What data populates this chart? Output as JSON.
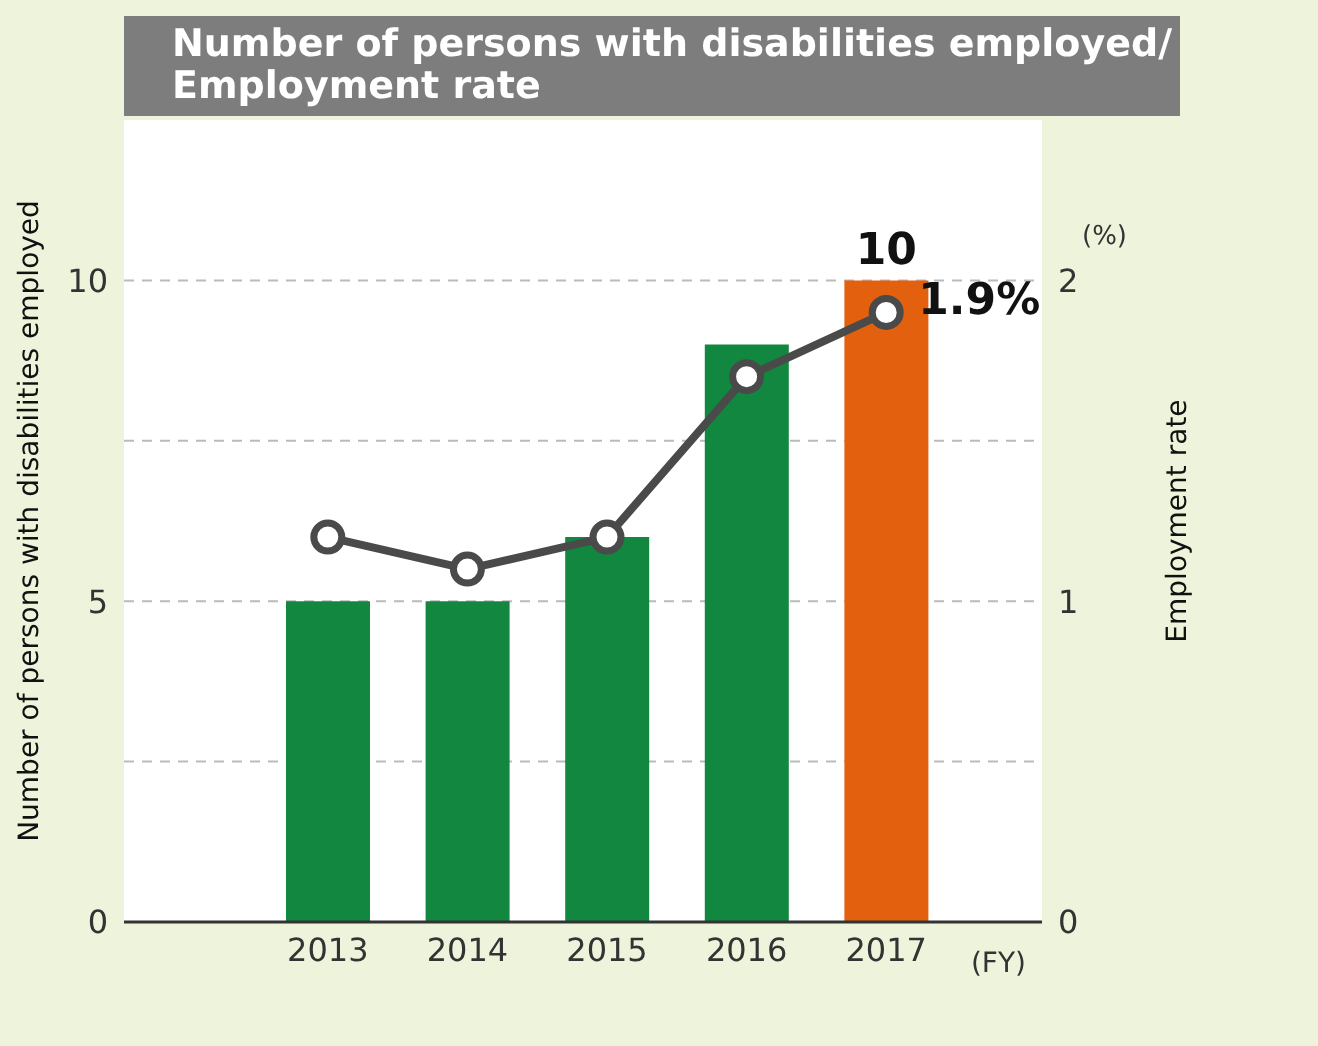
{
  "chart_data": {
    "type": "bar",
    "title": "Number of persons with disabilities employed/\nEmployment rate",
    "xlabel": "(FY)",
    "ylabel": "Number of persons with disabilities employed",
    "y2label": "Employment rate",
    "annotations": [
      "(%)"
    ],
    "categories": [
      "2013",
      "2014",
      "2015",
      "2016",
      "2017"
    ],
    "series": [
      {
        "values": [
          5,
          5,
          6,
          9,
          10
        ],
        "colors": [
          "#12873f",
          "#12873f",
          "#12873f",
          "#12873f",
          "#e2600e"
        ],
        "value_labels": [
          null,
          null,
          null,
          null,
          "10"
        ]
      },
      {
        "type": "line",
        "axis": "y2",
        "color": "#4a4a4a",
        "values": [
          1.2,
          1.1,
          1.2,
          1.7,
          1.9
        ],
        "value_labels": [
          null,
          null,
          null,
          null,
          "1.9%"
        ]
      }
    ],
    "ylim": [
      0,
      12.5
    ],
    "yticks": [
      0,
      {
        "value": 2.5,
        "label": null
      },
      5,
      {
        "value": 7.5,
        "label": null
      },
      10
    ],
    "y2lim": [
      0,
      2.5
    ],
    "y2ticks": [
      0,
      1,
      2
    ],
    "grid": "y",
    "marker": "circle",
    "line_style": "solid",
    "legend": false
  }
}
